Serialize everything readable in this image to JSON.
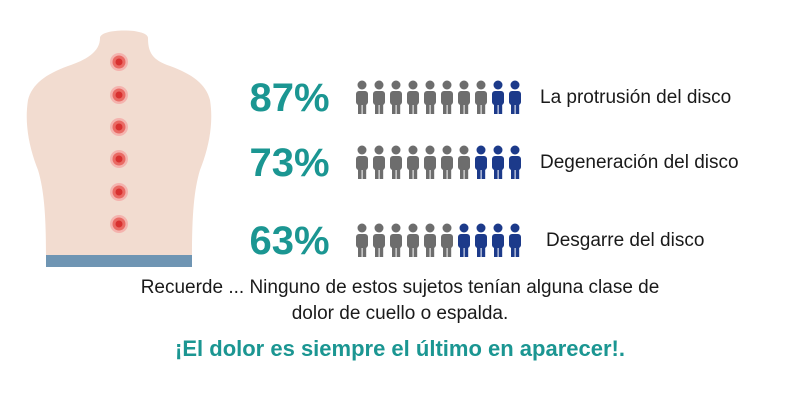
{
  "stats": [
    {
      "percent": "87%",
      "label": "La protrusión del disco",
      "highlighted_of_10": 2
    },
    {
      "percent": "73%",
      "label": "Degeneración del disco",
      "highlighted_of_10": 3
    },
    {
      "percent": "63%",
      "label": "Desgarre del disco",
      "highlighted_of_10": 4
    }
  ],
  "reminder": {
    "line1": "Recuerde ... Ninguno de estos sujetos tenían alguna clase de",
    "line2": "dolor de cuello o espalda."
  },
  "tagline": "¡El dolor es siempre el último en aparecer!.",
  "colors": {
    "accent": "#1b9692",
    "person_gray": "#6d6d6d",
    "person_blue": "#1c3a8a",
    "skin": "#f2dcd0",
    "waistband": "#6f95b3",
    "pain_point": "#d8302f"
  },
  "icons": {
    "person": "person-icon",
    "pain_point": "pain-point-icon"
  }
}
